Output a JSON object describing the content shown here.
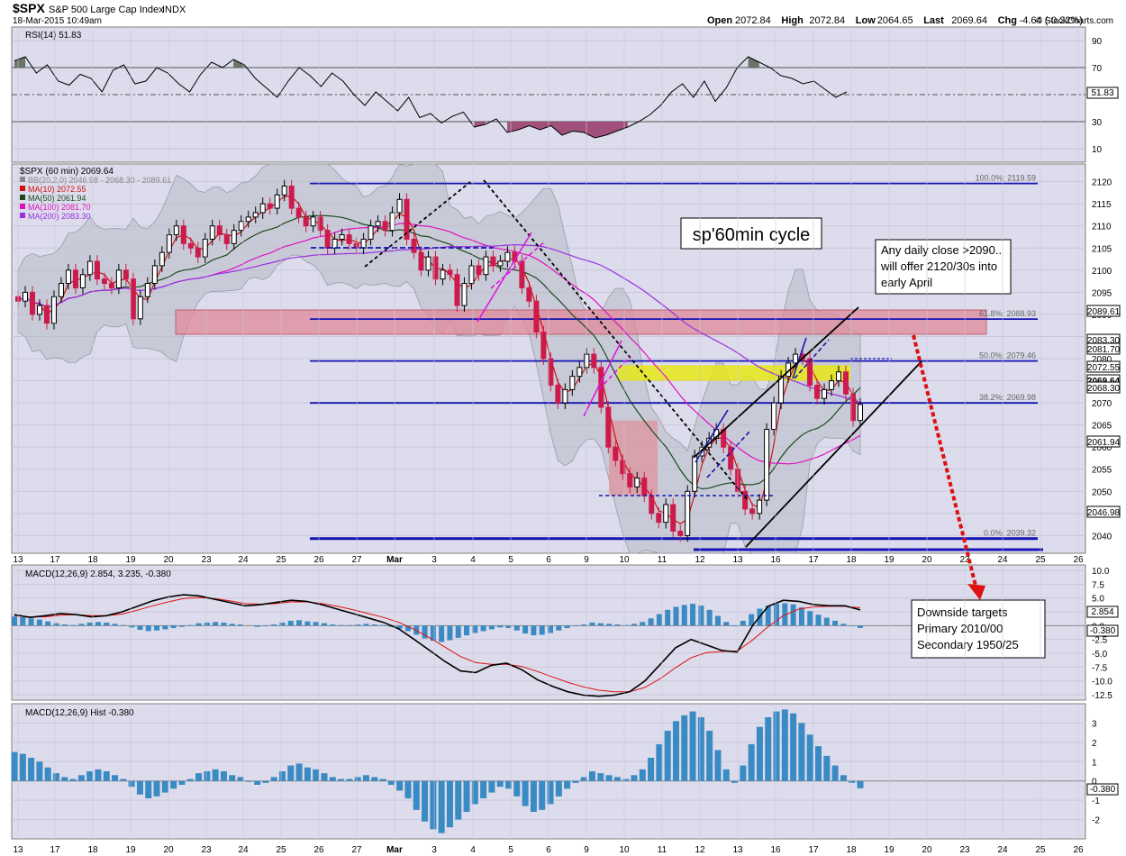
{
  "header": {
    "symbol": "$SPX",
    "name": "S&P 500 Large Cap Index",
    "exchange": "INDX",
    "datetime": "18-Mar-2015 10:49am",
    "ohlc": [
      {
        "label": "Open",
        "value": "2072.84"
      },
      {
        "label": "High",
        "value": "2072.84"
      },
      {
        "label": "Low",
        "value": "2064.65"
      },
      {
        "label": "Last",
        "value": "2069.64"
      },
      {
        "label": "Chg",
        "value": "-4.64 (-0.22%)"
      }
    ],
    "copyright": "© StockCharts.com"
  },
  "colors": {
    "panel_bg": "#dcdcec",
    "up": "#000000",
    "down": "#cc1a4a",
    "blue_line": "#1414b4",
    "red_zone": "#e08a9a",
    "yellow_zone": "#e8e818",
    "ma10": "#d01010",
    "ma50": "#1a4a1a",
    "ma100": "#e010c0",
    "ma200": "#9a30e0",
    "macd_hist": "#3a8ac4",
    "arrow": "#e01010"
  },
  "chart_data": [
    {
      "type": "line",
      "panel": "rsi",
      "title": "RSI(14) 51.83",
      "ylim": [
        0,
        100
      ],
      "yticks": [
        10,
        30,
        50,
        70,
        90
      ],
      "last_label": "51.83",
      "x": [
        0,
        3,
        6,
        9,
        12,
        15,
        18,
        21,
        24,
        27,
        30,
        33,
        36,
        39,
        42,
        45,
        48,
        51,
        54,
        57,
        60,
        63,
        66,
        69,
        72,
        75,
        78,
        81,
        84,
        87,
        90,
        93,
        96,
        99,
        102,
        105,
        108,
        111,
        114,
        117,
        120,
        123,
        126,
        129,
        132,
        135,
        138,
        141,
        144,
        147,
        150,
        153,
        156,
        159,
        162,
        165,
        168,
        171,
        174,
        177,
        180,
        183,
        186,
        189,
        192,
        195,
        198,
        201,
        204,
        207,
        210,
        213,
        216,
        219,
        222,
        225,
        228
      ],
      "values": [
        75,
        78,
        66,
        72,
        60,
        57,
        65,
        62,
        52,
        68,
        72,
        58,
        60,
        70,
        66,
        58,
        52,
        65,
        74,
        70,
        76,
        72,
        62,
        55,
        48,
        60,
        70,
        64,
        56,
        66,
        60,
        50,
        42,
        52,
        45,
        38,
        48,
        33,
        36,
        29,
        34,
        37,
        26,
        28,
        32,
        22,
        24,
        27,
        24,
        27,
        20,
        23,
        22,
        18,
        20,
        23,
        26,
        30,
        35,
        42,
        52,
        58,
        48,
        60,
        45,
        55,
        70,
        78,
        74,
        70,
        64,
        62,
        58,
        60,
        54,
        48,
        52
      ]
    },
    {
      "type": "candlestick",
      "panel": "price",
      "title": "$SPX (60 min) 2069.64",
      "ylim": [
        2036,
        2124
      ],
      "yticks": [
        2040,
        2045,
        2050,
        2055,
        2060,
        2065,
        2070,
        2075,
        2080,
        2085,
        2090,
        2095,
        2100,
        2105,
        2110,
        2115,
        2120
      ],
      "x_ticks": [
        "13",
        "17",
        "18",
        "19",
        "20",
        "23",
        "24",
        "25",
        "26",
        "27",
        "Mar",
        "3",
        "4",
        "5",
        "6",
        "9",
        "10",
        "11",
        "12",
        "13",
        "16",
        "17",
        "18",
        "19",
        "20",
        "23",
        "24",
        "25",
        "26"
      ],
      "legend": [
        {
          "text": "BB(20,2.0) 2046.98 - 2068.30 - 2089.61",
          "color": "#888888"
        },
        {
          "text": "MA(10) 2072.55",
          "color": "#d01010"
        },
        {
          "text": "MA(50) 2061.94",
          "color": "#1a4a1a"
        },
        {
          "text": "MA(100) 2081.70",
          "color": "#e010c0"
        },
        {
          "text": "MA(200) 2083.30",
          "color": "#9a30e0"
        }
      ],
      "close": [
        2093,
        2095,
        2090,
        2092,
        2088,
        2094,
        2097,
        2100,
        2096,
        2099,
        2102,
        2098,
        2097,
        2096,
        2100,
        2098,
        2089,
        2094,
        2097,
        2101,
        2104,
        2108,
        2110,
        2106,
        2105,
        2103,
        2107,
        2110,
        2108,
        2106,
        2109,
        2111,
        2112,
        2113,
        2115,
        2114,
        2117,
        2119,
        2114,
        2112,
        2110,
        2112,
        2109,
        2105,
        2107,
        2108,
        2106,
        2105,
        2107,
        2110,
        2111,
        2109,
        2113,
        2116,
        2107,
        2104,
        2100,
        2103,
        2098,
        2100,
        2099,
        2092,
        2097,
        2101,
        2099,
        2103,
        2101,
        2102,
        2104,
        2102,
        2096,
        2093,
        2086,
        2080,
        2074,
        2070,
        2073,
        2076,
        2078,
        2081,
        2078,
        2069,
        2060,
        2057,
        2054,
        2051,
        2053,
        2049,
        2045,
        2043,
        2047,
        2041,
        2040,
        2050,
        2058,
        2060,
        2062,
        2064,
        2060,
        2055,
        2050,
        2046,
        2045,
        2048,
        2064,
        2070,
        2076,
        2079,
        2081,
        2080,
        2074,
        2071,
        2073,
        2075,
        2077,
        2072,
        2066,
        2069.64
      ],
      "annotations": [
        {
          "text": "sp'60min cycle"
        },
        {
          "text": "Any daily close >2090.. will offer 2120/30s into early April"
        },
        {
          "text": "Downside targets Primary 2010/00 Secondary 1950/25"
        }
      ],
      "fib_levels": [
        {
          "price": 2119.59,
          "label": "100.0%: 2119.59"
        },
        {
          "price": 2088.93,
          "label": "61.8%: 2088.93"
        },
        {
          "price": 2079.46,
          "label": "50.0%: 2079.46"
        },
        {
          "price": 2069.98,
          "label": "38.2%: 2069.98"
        },
        {
          "price": 2039.32,
          "label": "0.0%: 2039.32"
        }
      ],
      "price_tags": [
        {
          "price": 2089.61,
          "text": "2089.61"
        },
        {
          "price": 2083.3,
          "text": "2083.30"
        },
        {
          "price": 2081.7,
          "text": "2081.70"
        },
        {
          "price": 2072.55,
          "text": "2072.55"
        },
        {
          "price": 2069.64,
          "text": "2069.64"
        },
        {
          "price": 2068.3,
          "text": "2068.30"
        },
        {
          "price": 2061.94,
          "text": "2061.94"
        },
        {
          "price": 2046.98,
          "text": "2046.98"
        }
      ]
    },
    {
      "type": "line",
      "panel": "macd",
      "title": "MACD(12,26,9) 2.854, 3.235, -0.380",
      "ylim": [
        -13.5,
        11
      ],
      "yticks": [
        10.0,
        7.5,
        5.0,
        2.5,
        0.0,
        -2.5,
        -5.0,
        -7.5,
        -10.0,
        -12.5
      ],
      "series": [
        {
          "name": "MACD",
          "values": [
            2,
            1.5,
            1.8,
            2.2,
            2,
            1.6,
            1.8,
            2.5,
            3.5,
            4.5,
            5.2,
            5.6,
            5.4,
            4.8,
            4.2,
            3.6,
            3.8,
            4.2,
            4.6,
            4.4,
            3.8,
            3.0,
            2.2,
            1.4,
            0.6,
            -0.6,
            -2.5,
            -4.5,
            -6.5,
            -8.2,
            -8.5,
            -7.2,
            -6.8,
            -8,
            -9.8,
            -11,
            -12,
            -12.6,
            -12.8,
            -12.6,
            -12,
            -10,
            -7,
            -4,
            -2.5,
            -3.5,
            -4.5,
            -4.8,
            0,
            3.5,
            4.6,
            4.4,
            3.8,
            3.6,
            3.6,
            2.854
          ]
        },
        {
          "name": "Signal",
          "values": [
            1.8,
            1.6,
            1.6,
            1.9,
            2.0,
            1.8,
            1.8,
            2.1,
            2.8,
            3.6,
            4.3,
            4.9,
            5.1,
            4.9,
            4.5,
            4.0,
            3.9,
            4.0,
            4.3,
            4.3,
            4.0,
            3.5,
            2.9,
            2.2,
            1.5,
            0.6,
            -0.7,
            -2.2,
            -3.9,
            -5.6,
            -6.7,
            -7.0,
            -7.0,
            -7.4,
            -8.3,
            -9.3,
            -10.3,
            -11.1,
            -11.7,
            -12.0,
            -12.0,
            -11.2,
            -9.6,
            -7.6,
            -5.8,
            -4.9,
            -4.7,
            -4.6,
            -2.6,
            -0.2,
            1.8,
            3.0,
            3.4,
            3.5,
            3.5,
            3.235
          ]
        }
      ],
      "last_labels": [
        "2.854",
        "-0.380"
      ]
    },
    {
      "type": "bar",
      "panel": "hist",
      "title": "MACD(12,26,9) Hist -0.380",
      "ylim": [
        -3,
        4
      ],
      "yticks": [
        3,
        2,
        1,
        0,
        -1,
        -2
      ],
      "values": [
        1.5,
        1.4,
        1.2,
        1.0,
        0.7,
        0.4,
        0.2,
        0.1,
        0.3,
        0.5,
        0.6,
        0.5,
        0.3,
        0.1,
        -0.3,
        -0.7,
        -0.9,
        -0.8,
        -0.6,
        -0.4,
        -0.2,
        0.1,
        0.4,
        0.5,
        0.6,
        0.5,
        0.3,
        0.2,
        0.0,
        -0.2,
        -0.1,
        0.2,
        0.5,
        0.8,
        0.9,
        0.7,
        0.6,
        0.4,
        0.2,
        0.1,
        0.1,
        0.2,
        0.3,
        0.2,
        0.1,
        -0.2,
        -0.5,
        -0.9,
        -1.5,
        -2.1,
        -2.5,
        -2.7,
        -2.4,
        -2.0,
        -1.6,
        -1.2,
        -0.9,
        -0.6,
        -0.3,
        -0.4,
        -0.8,
        -1.3,
        -1.6,
        -1.5,
        -1.2,
        -0.8,
        -0.4,
        -0.1,
        0.2,
        0.5,
        0.4,
        0.3,
        0.2,
        0.1,
        0.3,
        0.6,
        1.2,
        1.9,
        2.6,
        3.1,
        3.4,
        3.6,
        3.3,
        2.6,
        1.6,
        0.6,
        -0.1,
        0.8,
        1.9,
        2.8,
        3.3,
        3.6,
        3.7,
        3.5,
        3.0,
        2.4,
        1.8,
        1.3,
        0.8,
        0.3,
        -0.1,
        -0.38
      ],
      "last_label": "-0.380"
    }
  ]
}
